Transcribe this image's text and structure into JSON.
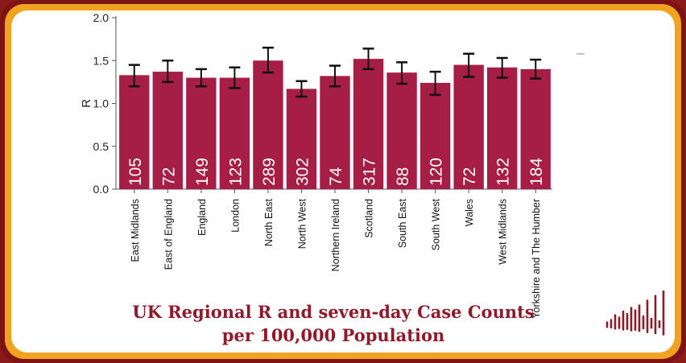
{
  "caption": {
    "line1": "UK Regional R and seven-day Case Counts",
    "line2": "per 100,000 Population"
  },
  "colors": {
    "bar": "#a61e45",
    "frame_outer": "#7e1316",
    "frame_inner": "#f1a31f",
    "caption": "#8e1a2c",
    "logo": "#8b1a2a"
  },
  "logo": {
    "icon": "bar-wave-logo"
  },
  "chart_data": {
    "type": "bar",
    "ylabel": "R",
    "xlabel": "",
    "ylim": [
      0,
      2.0
    ],
    "yticks": [
      0.0,
      0.5,
      1.0,
      1.5,
      2.0
    ],
    "ytick_labels": [
      "0.0",
      "0.5",
      "1.0",
      "1.5",
      "2.0"
    ],
    "grid": false,
    "categories": [
      "East Midlands",
      "East of England",
      "England",
      "London",
      "North East",
      "North West",
      "Northern Ireland",
      "Scotland",
      "South East",
      "South West",
      "Wales",
      "West Midlands",
      "Yorkshire and The Humber"
    ],
    "values": [
      1.33,
      1.37,
      1.3,
      1.3,
      1.5,
      1.17,
      1.32,
      1.52,
      1.36,
      1.24,
      1.45,
      1.42,
      1.4
    ],
    "error_low": [
      1.2,
      1.25,
      1.2,
      1.18,
      1.36,
      1.08,
      1.2,
      1.4,
      1.23,
      1.1,
      1.31,
      1.3,
      1.29
    ],
    "error_high": [
      1.45,
      1.5,
      1.4,
      1.42,
      1.65,
      1.26,
      1.44,
      1.64,
      1.48,
      1.37,
      1.58,
      1.53,
      1.51
    ],
    "data_labels": [
      "105",
      "72",
      "149",
      "123",
      "289",
      "302",
      "74",
      "317",
      "88",
      "120",
      "72",
      "132",
      "184"
    ]
  }
}
